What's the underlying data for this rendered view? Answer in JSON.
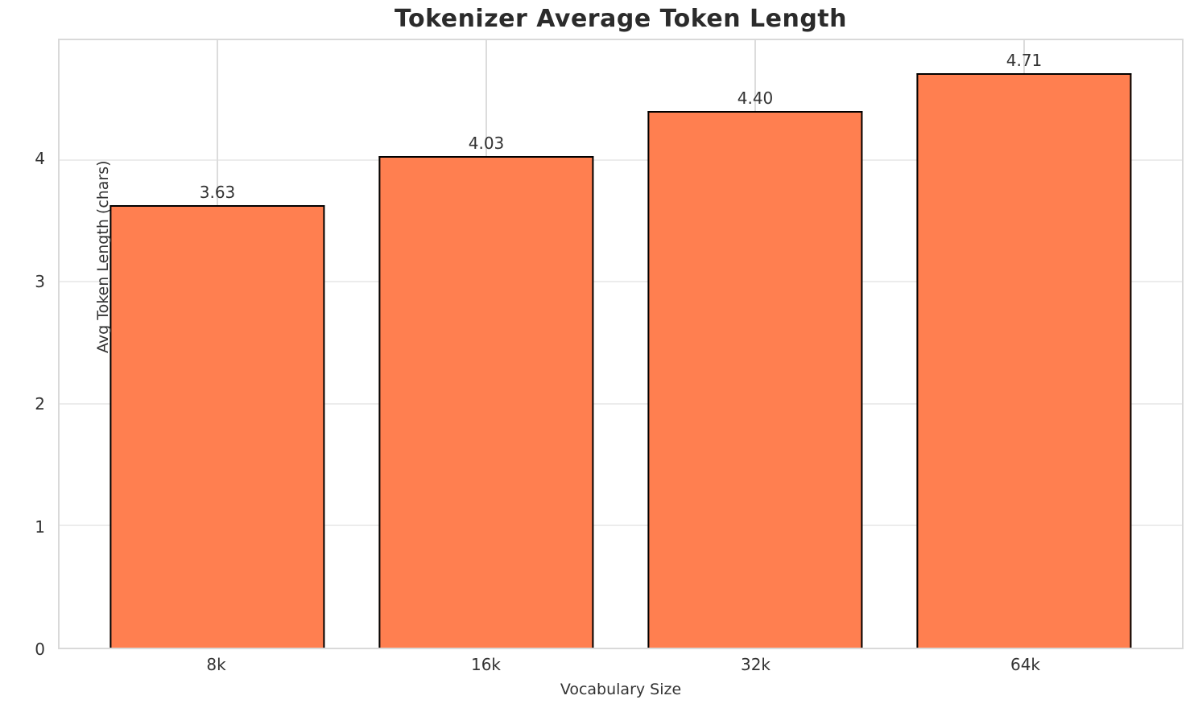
{
  "title": "Tokenizer Average Token Length",
  "chart_data": {
    "type": "bar",
    "categories": [
      "8k",
      "16k",
      "32k",
      "64k"
    ],
    "values": [
      3.63,
      4.03,
      4.4,
      4.71
    ],
    "value_labels": [
      "3.63",
      "4.03",
      "4.40",
      "4.71"
    ],
    "title": "Tokenizer Average Token Length",
    "xlabel": "Vocabulary Size",
    "ylabel": "Avg Token Length (chars)",
    "ylim": [
      0,
      4.98
    ],
    "yticks": [
      0,
      1,
      2,
      3,
      4
    ],
    "grid": true,
    "legend": "none",
    "bar_color": "#FF7F50",
    "bar_edge_color": "#000000",
    "grid_color_horizontal": "#ECECEC",
    "grid_color_vertical": "#DCDCDC",
    "spine_color": "#D9D9D9",
    "background_color": "#FFFFFF",
    "text_color": "#333333",
    "title_color": "#2B2B2B"
  }
}
